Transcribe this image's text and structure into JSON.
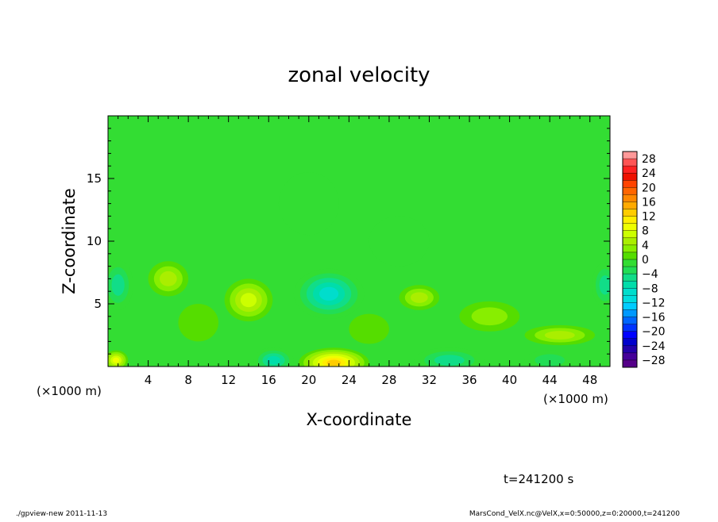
{
  "chart_data": {
    "type": "heatmap",
    "title": "zonal velocity",
    "xlabel": "X-coordinate",
    "ylabel": "Z-coordinate",
    "x_unit_label": "(×1000 m)",
    "x_unit_label_right": "(×1000 m)",
    "xlim": [
      0,
      50
    ],
    "ylim": [
      0,
      20
    ],
    "xticks": [
      "4",
      "8",
      "12",
      "16",
      "20",
      "24",
      "28",
      "32",
      "36",
      "40",
      "44",
      "48"
    ],
    "xtick_values": [
      4,
      8,
      12,
      16,
      20,
      24,
      28,
      32,
      36,
      40,
      44,
      48
    ],
    "yticks": [
      "5",
      "10",
      "15"
    ],
    "ytick_values": [
      5,
      10,
      15
    ],
    "colorbar": {
      "labels": [
        "28",
        "24",
        "20",
        "16",
        "12",
        "8",
        "4",
        "0",
        "−4",
        "−8",
        "−12",
        "−16",
        "−20",
        "−24",
        "−28"
      ],
      "levels": [
        30,
        28,
        26,
        24,
        22,
        20,
        18,
        16,
        14,
        12,
        10,
        8,
        6,
        4,
        2,
        0,
        -2,
        -4,
        -6,
        -8,
        -10,
        -12,
        -14,
        -16,
        -18,
        -20,
        -22,
        -24,
        -26,
        -28,
        -30
      ],
      "colors": [
        "#ff9999",
        "#ff5555",
        "#ff2222",
        "#ee1100",
        "#ff4400",
        "#ff6600",
        "#ff8800",
        "#ffaa00",
        "#ffcc00",
        "#ffee00",
        "#eeff00",
        "#ccff00",
        "#aaee00",
        "#88ee00",
        "#55dd00",
        "#33dd33",
        "#22dd55",
        "#11dd88",
        "#00ddaa",
        "#00ddcc",
        "#00dddd",
        "#00ccff",
        "#0099ff",
        "#0066ff",
        "#0033ff",
        "#0000ff",
        "#0000cc",
        "#2200aa",
        "#440099",
        "#550088"
      ]
    },
    "features": [
      {
        "x": 22.5,
        "z": 0.3,
        "value": 14,
        "sx": 3.5,
        "sz": 1.2
      },
      {
        "x": 14.0,
        "z": 5.3,
        "value": 9,
        "sx": 2.4,
        "sz": 1.7
      },
      {
        "x": 22.0,
        "z": 5.8,
        "value": -10,
        "sx": 3.5,
        "sz": 2.0
      },
      {
        "x": 1.0,
        "z": 6.5,
        "value": -7,
        "sx": 1.5,
        "sz": 2.0
      },
      {
        "x": 49.5,
        "z": 6.5,
        "value": -7,
        "sx": 1.3,
        "sz": 1.8
      },
      {
        "x": 0.8,
        "z": 0.5,
        "value": 10,
        "sx": 1.2,
        "sz": 0.8
      },
      {
        "x": 6.0,
        "z": 7.0,
        "value": 6,
        "sx": 2.0,
        "sz": 1.4
      },
      {
        "x": 16.5,
        "z": 0.5,
        "value": -9,
        "sx": 2.0,
        "sz": 1.0
      },
      {
        "x": 34.0,
        "z": 0.5,
        "value": -7,
        "sx": 3.5,
        "sz": 1.0
      },
      {
        "x": 44.0,
        "z": 0.5,
        "value": -5,
        "sx": 2.5,
        "sz": 0.8
      },
      {
        "x": 31.0,
        "z": 5.5,
        "value": 6,
        "sx": 2.0,
        "sz": 1.0
      },
      {
        "x": 45.0,
        "z": 2.5,
        "value": 7,
        "sx": 3.5,
        "sz": 0.8
      },
      {
        "x": 38.0,
        "z": 4.0,
        "value": 4,
        "sx": 3.0,
        "sz": 1.2
      },
      {
        "x": 26.0,
        "z": 3.0,
        "value": 3,
        "sx": 2.0,
        "sz": 1.2
      },
      {
        "x": 9.0,
        "z": 3.5,
        "value": 3,
        "sx": 2.0,
        "sz": 1.5
      },
      {
        "x": 20.0,
        "z": 13.0,
        "value": -2,
        "sx": 3.0,
        "sz": 2.5
      },
      {
        "x": 29.0,
        "z": 10.0,
        "value": -2,
        "sx": 3.0,
        "sz": 2.0
      }
    ]
  },
  "annotations": {
    "time": "t=241200 s",
    "footer_left": "./gpview-new  2011-11-13",
    "footer_right": "MarsCond_VelX.nc@VelX,x=0:50000,z=0:20000,t=241200"
  },
  "colors": {
    "background": "#ffffff",
    "frame": "#000000"
  }
}
